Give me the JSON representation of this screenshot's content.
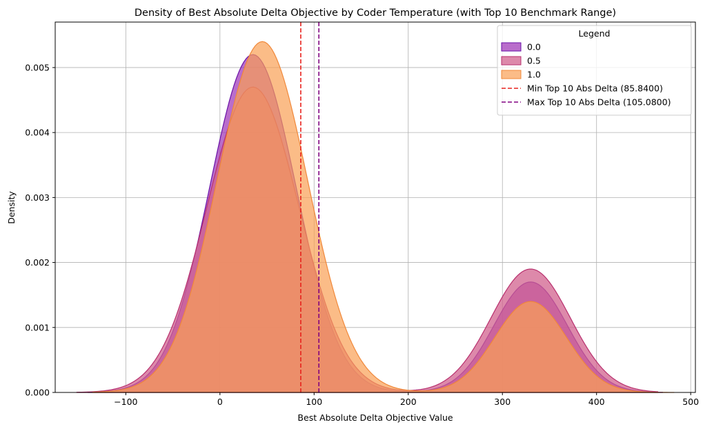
{
  "chart_data": {
    "type": "area",
    "title": "Density of Best Absolute Delta Objective by Coder Temperature (with Top 10 Benchmark Range)",
    "xlabel": "Best Absolute Delta Objective Value",
    "ylabel": "Density",
    "xlim": [
      -175,
      505
    ],
    "ylim": [
      0,
      0.0057
    ],
    "xticks": [
      -100,
      0,
      100,
      200,
      300,
      400,
      500
    ],
    "xtick_labels": [
      "−100",
      "0",
      "100",
      "200",
      "300",
      "400",
      "500"
    ],
    "yticks": [
      0,
      0.001,
      0.002,
      0.003,
      0.004,
      0.005
    ],
    "ytick_labels": [
      "0.000",
      "0.001",
      "0.002",
      "0.003",
      "0.004",
      "0.005"
    ],
    "grid": true,
    "legend": {
      "title": "Legend",
      "placement": "top-right"
    },
    "series": [
      {
        "name": "0.0",
        "fill": "#9b2fb5",
        "stroke": "#6a12a8",
        "opacity": 0.7,
        "components": [
          {
            "weight": 0.6,
            "mean": 35,
            "sd": 46,
            "peak": 0.0052
          },
          {
            "weight": 0.2,
            "mean": 330,
            "sd": 39,
            "peak": 0.0017
          }
        ],
        "x_range": [
          -140,
          470
        ]
      },
      {
        "name": "0.5",
        "fill": "#d2628e",
        "stroke": "#b8306e",
        "opacity": 0.75,
        "components": [
          {
            "weight": 0.6,
            "mean": 35,
            "sd": 49,
            "peak": 0.0047
          },
          {
            "weight": 0.2,
            "mean": 330,
            "sd": 42,
            "peak": 0.0019
          }
        ],
        "x_range": [
          -152,
          465
        ]
      },
      {
        "name": "1.0",
        "fill": "#f9a054",
        "stroke": "#f0883a",
        "opacity": 0.7,
        "components": [
          {
            "weight": 0.6,
            "mean": 45,
            "sd": 48,
            "peak": 0.0054
          },
          {
            "weight": 0.2,
            "mean": 330,
            "sd": 38,
            "peak": 0.0014
          }
        ],
        "x_range": [
          -135,
          482
        ]
      }
    ],
    "vlines": [
      {
        "name": "Min Top 10 Abs Delta (85.8400)",
        "x": 85.84,
        "color": "#e8211c"
      },
      {
        "name": "Max Top 10 Abs Delta (105.0800)",
        "x": 105.08,
        "color": "#800080"
      }
    ]
  }
}
